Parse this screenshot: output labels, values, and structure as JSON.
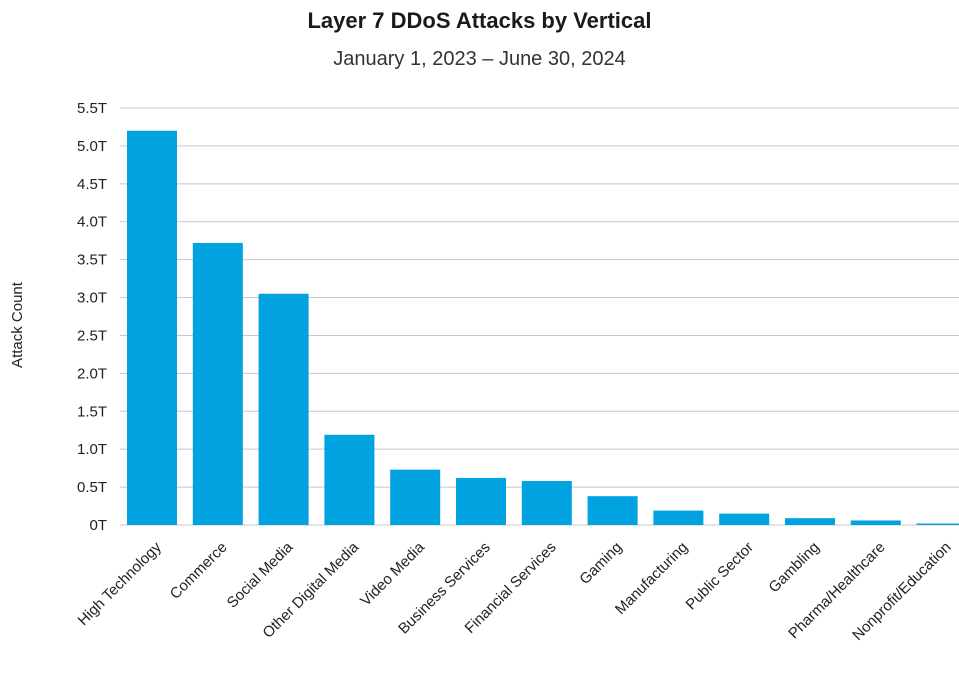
{
  "chart_data": {
    "type": "bar",
    "title": "Layer 7 DDoS Attacks by Vertical",
    "subtitle": "January 1, 2023 – June 30, 2024",
    "ylabel": "Attack Count",
    "xlabel": "",
    "categories": [
      "High Technology",
      "Commerce",
      "Social Media",
      "Other Digital Media",
      "Video Media",
      "Business Services",
      "Financial Services",
      "Gaming",
      "Manufacturing",
      "Public Sector",
      "Gambling",
      "Pharma/Healthcare",
      "Nonprofit/Education"
    ],
    "values": [
      5.2,
      3.72,
      3.05,
      1.19,
      0.73,
      0.62,
      0.58,
      0.38,
      0.19,
      0.15,
      0.09,
      0.06,
      0.02
    ],
    "value_unit": "T",
    "ylim": [
      0,
      5.5
    ],
    "yticks": [
      "0T",
      "0.5T",
      "1.0T",
      "1.5T",
      "2.0T",
      "2.5T",
      "3.0T",
      "3.5T",
      "4.0T",
      "4.5T",
      "5.0T",
      "5.5T"
    ],
    "bar_color": "#00a2e0",
    "grid": true,
    "legend": "none"
  }
}
